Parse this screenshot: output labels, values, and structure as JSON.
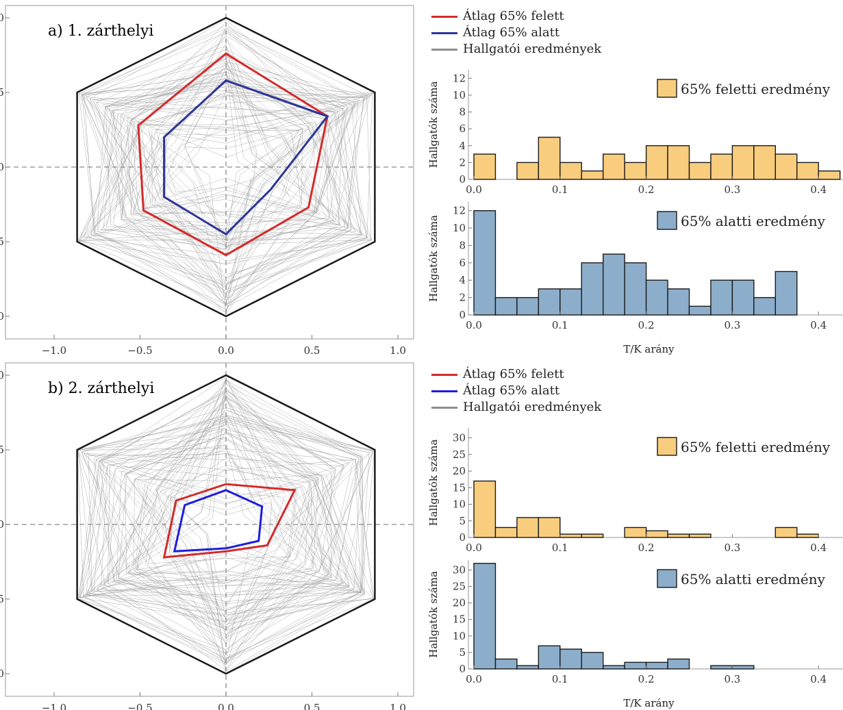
{
  "colors": {
    "above_line": "#d42a2a",
    "below_line_a": "#2d3597",
    "below_line_b": "#1c1ce0",
    "student_line": "#8c8c8c",
    "hist_above": "#f8cd7e",
    "hist_below": "#8daecb"
  },
  "legend": {
    "above": "Átlag 65% felett",
    "below": "Átlag 65% alatt",
    "students": "Hallgatói eredmények"
  },
  "chart_data": [
    {
      "type": "radar",
      "title": "a) 1. zárthelyi",
      "xlim": [
        -1.0,
        1.0
      ],
      "ylim": [
        -1.0,
        1.0
      ],
      "ticks": [
        "−1.0",
        "−0.5",
        "0.0",
        "0.5",
        "1.0"
      ],
      "series": [
        {
          "name": "Átlag 65% felett",
          "points": [
            [
              0.0,
              0.76
            ],
            [
              0.59,
              0.34
            ],
            [
              0.48,
              -0.27
            ],
            [
              0.0,
              -0.59
            ],
            [
              -0.48,
              -0.29
            ],
            [
              -0.51,
              0.28
            ]
          ]
        },
        {
          "name": "Átlag 65% alatt",
          "points": [
            [
              0.0,
              0.58
            ],
            [
              0.59,
              0.34
            ],
            [
              0.26,
              -0.15
            ],
            [
              0.0,
              -0.45
            ],
            [
              -0.36,
              -0.2
            ],
            [
              -0.36,
              0.2
            ]
          ]
        }
      ]
    },
    {
      "type": "bar",
      "title": "65% feletti eredmény",
      "xlabel": "",
      "ylabel": "Hallgatók száma",
      "xticks": [
        "0.0",
        "0.1",
        "0.2",
        "0.3",
        "0.4"
      ],
      "yticks": [
        "0",
        "2",
        "4",
        "6",
        "8",
        "10",
        "12"
      ],
      "ylim": [
        0,
        13
      ],
      "bin_width": 0.025,
      "bin_starts": [
        0.0,
        0.05,
        0.075,
        0.1,
        0.125,
        0.15,
        0.175,
        0.2,
        0.225,
        0.25,
        0.275,
        0.3,
        0.325,
        0.35,
        0.375,
        0.4
      ],
      "values": [
        3,
        2,
        5,
        2,
        1,
        3,
        2,
        4,
        4,
        2,
        3,
        4,
        4,
        3,
        2,
        1
      ]
    },
    {
      "type": "bar",
      "title": "65% alatti eredmény",
      "xlabel": "T/K arány",
      "ylabel": "Hallgatók száma",
      "xticks": [
        "0.0",
        "0.1",
        "0.2",
        "0.3",
        "0.4"
      ],
      "yticks": [
        "0",
        "2",
        "4",
        "6",
        "8",
        "10",
        "12"
      ],
      "ylim": [
        0,
        13
      ],
      "bin_width": 0.025,
      "bin_starts": [
        0.0,
        0.025,
        0.05,
        0.075,
        0.1,
        0.125,
        0.15,
        0.175,
        0.2,
        0.225,
        0.25,
        0.275,
        0.3,
        0.325,
        0.35
      ],
      "values": [
        12,
        2,
        2,
        3,
        3,
        6,
        7,
        6,
        4,
        3,
        1,
        4,
        4,
        2,
        5
      ]
    },
    {
      "type": "radar",
      "title": "b) 2. zárthelyi",
      "xlim": [
        -1.0,
        1.0
      ],
      "ylim": [
        -1.0,
        1.0
      ],
      "ticks": [
        "−1.0",
        "−0.5",
        "0.0",
        "0.5",
        "1.0"
      ],
      "series": [
        {
          "name": "Átlag 65% felett",
          "points": [
            [
              0.0,
              0.27
            ],
            [
              0.4,
              0.23
            ],
            [
              0.24,
              -0.14
            ],
            [
              0.0,
              -0.18
            ],
            [
              -0.36,
              -0.22
            ],
            [
              -0.29,
              0.16
            ]
          ]
        },
        {
          "name": "Átlag 65% alatt",
          "points": [
            [
              0.0,
              0.23
            ],
            [
              0.21,
              0.12
            ],
            [
              0.19,
              -0.11
            ],
            [
              0.0,
              -0.16
            ],
            [
              -0.3,
              -0.18
            ],
            [
              -0.24,
              0.13
            ]
          ]
        }
      ]
    },
    {
      "type": "bar",
      "title": "65% feletti eredmény",
      "xlabel": "",
      "ylabel": "Hallgatók száma",
      "xticks": [
        "0.0",
        "0.1",
        "0.2",
        "0.3",
        "0.4"
      ],
      "yticks": [
        "0",
        "5",
        "10",
        "15",
        "20",
        "25",
        "30"
      ],
      "ylim": [
        0,
        33
      ],
      "bin_width": 0.025,
      "bin_starts": [
        0.0,
        0.025,
        0.05,
        0.075,
        0.1,
        0.125,
        0.175,
        0.2,
        0.225,
        0.25,
        0.35,
        0.375
      ],
      "values": [
        17,
        3,
        6,
        6,
        1,
        1,
        3,
        2,
        1,
        1,
        3,
        1
      ]
    },
    {
      "type": "bar",
      "title": "65% alatti eredmény",
      "xlabel": "T/K arány",
      "ylabel": "Hallgatók száma",
      "xticks": [
        "0.0",
        "0.1",
        "0.2",
        "0.3",
        "0.4"
      ],
      "yticks": [
        "0",
        "5",
        "10",
        "15",
        "20",
        "25",
        "30"
      ],
      "ylim": [
        0,
        33
      ],
      "bin_width": 0.025,
      "bin_starts": [
        0.0,
        0.025,
        0.05,
        0.075,
        0.1,
        0.125,
        0.15,
        0.175,
        0.2,
        0.225,
        0.275,
        0.3
      ],
      "values": [
        32,
        3,
        1,
        7,
        6,
        5,
        1,
        2,
        2,
        3,
        1,
        1
      ]
    }
  ]
}
